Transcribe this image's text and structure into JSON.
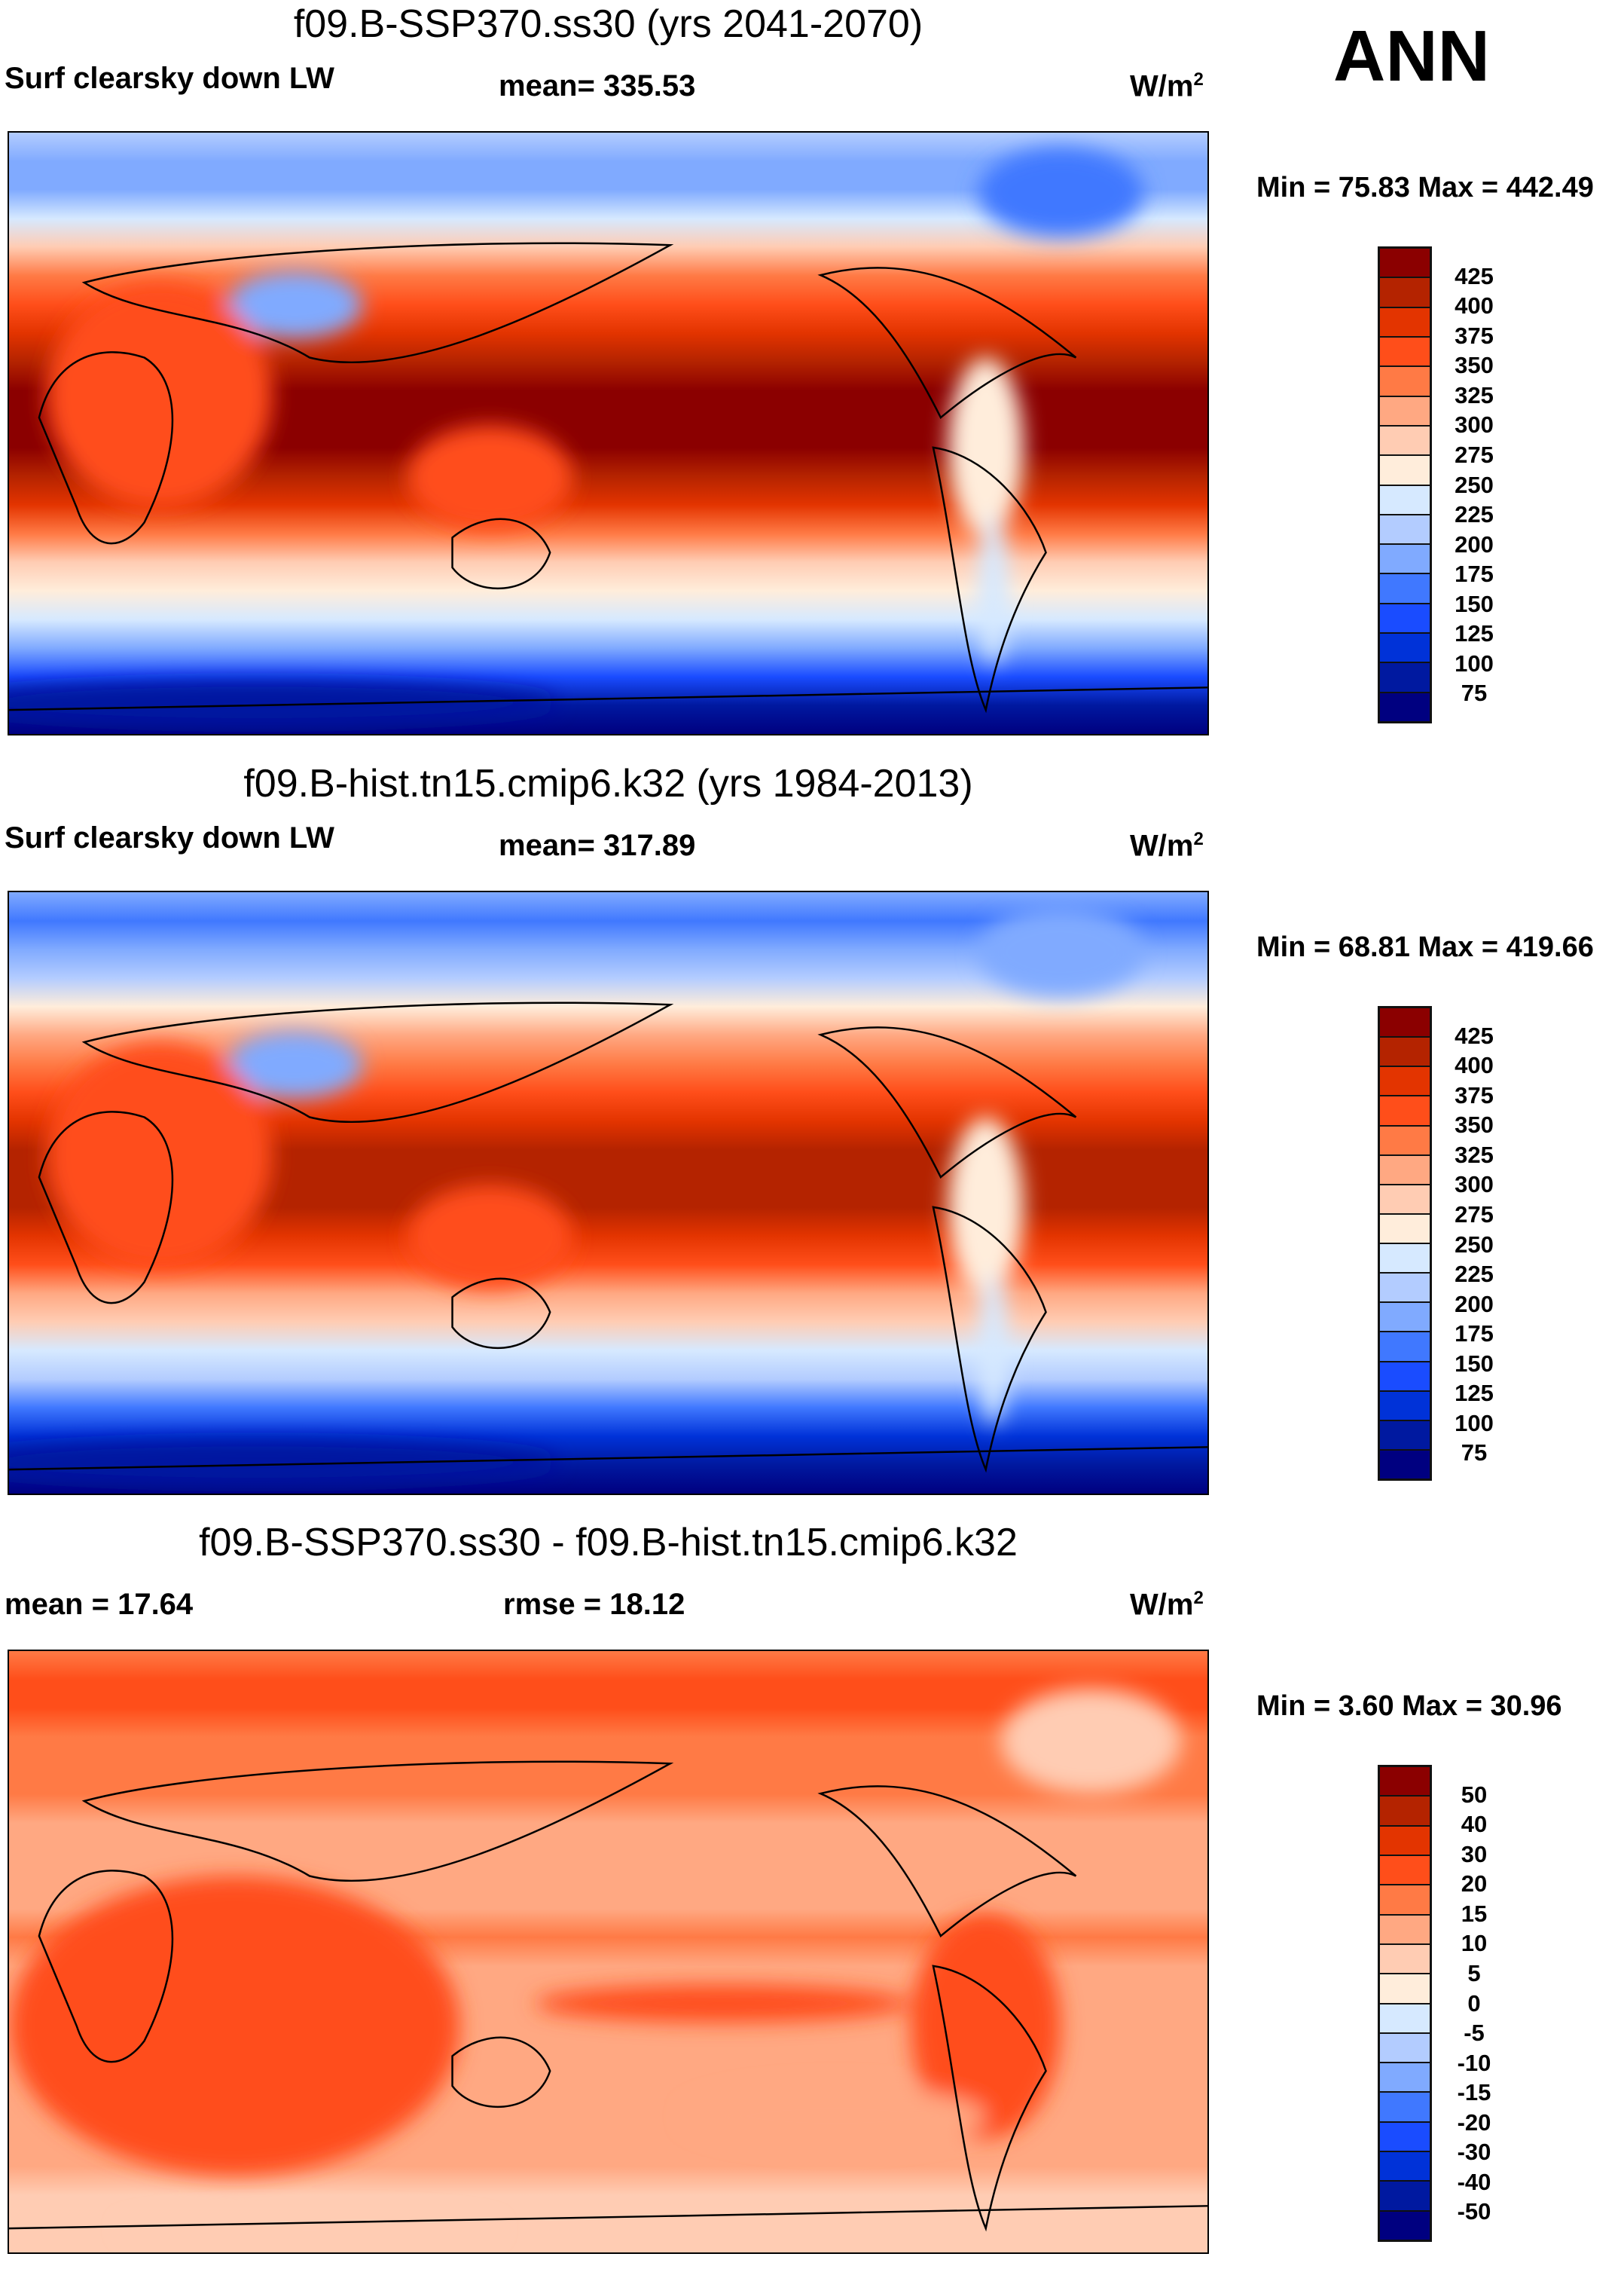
{
  "season": "ANN",
  "units": "W/m²",
  "colors": [
    "#000080",
    "#0019A0",
    "#0032D8",
    "#1A4CFF",
    "#4078FF",
    "#80AAFF",
    "#B3CCFF",
    "#D6E9FF",
    "#FFEDDB",
    "#FFCCB3",
    "#FFA882",
    "#FF7A45",
    "#FF4E1A",
    "#E33400",
    "#B42300",
    "#8B0000"
  ],
  "chart_data": [
    {
      "type": "heatmap",
      "title": "f09.B-SSP370.ss30 (yrs 2041-2070)",
      "variable": "Surf clearsky down LW",
      "stat_label": "mean= 335.53",
      "mean": 335.53,
      "units": "W/m",
      "min_max_label": "Min =  75.83 Max = 442.49",
      "min": 75.83,
      "max": 442.49,
      "levels": [
        "425",
        "400",
        "375",
        "350",
        "325",
        "300",
        "275",
        "250",
        "225",
        "200",
        "175",
        "150",
        "125",
        "100",
        "75"
      ],
      "band_profile": [
        6,
        5,
        5,
        7,
        9,
        11,
        12,
        13,
        14,
        15,
        15,
        15,
        14,
        13,
        11,
        9,
        8,
        7,
        5,
        3,
        1,
        0
      ]
    },
    {
      "type": "heatmap",
      "title": "f09.B-hist.tn15.cmip6.k32 (yrs 1984-2013)",
      "variable": "Surf clearsky down LW",
      "stat_label": "mean= 317.89",
      "mean": 317.89,
      "units": "W/m",
      "min_max_label": "Min =  68.81 Max = 419.66",
      "min": 68.81,
      "max": 419.66,
      "levels": [
        "425",
        "400",
        "375",
        "350",
        "325",
        "300",
        "275",
        "250",
        "225",
        "200",
        "175",
        "150",
        "125",
        "100",
        "75"
      ],
      "band_profile": [
        5,
        4,
        5,
        6,
        8,
        10,
        11,
        12,
        13,
        14,
        14,
        14,
        13,
        12,
        10,
        9,
        7,
        6,
        4,
        2,
        1,
        0
      ]
    },
    {
      "type": "heatmap",
      "title": "f09.B-SSP370.ss30 - f09.B-hist.tn15.cmip6.k32",
      "variable": "",
      "stat_label": "mean =  17.64",
      "rmse_label": "rmse =  18.12",
      "mean": 17.64,
      "rmse": 18.12,
      "units": "W/m",
      "min_max_label": "Min =   3.60 Max =  30.96",
      "min": 3.6,
      "max": 30.96,
      "levels": [
        "50",
        "40",
        "30",
        "20",
        "15",
        "10",
        "5",
        "0",
        "-5",
        "-10",
        "-15",
        "-20",
        "-30",
        "-40",
        "-50"
      ],
      "band_profile": [
        11,
        12,
        12,
        11,
        11,
        11,
        10,
        10,
        10,
        10,
        11,
        10,
        10,
        10,
        10,
        10,
        10,
        10,
        10,
        9,
        9,
        9
      ]
    }
  ]
}
